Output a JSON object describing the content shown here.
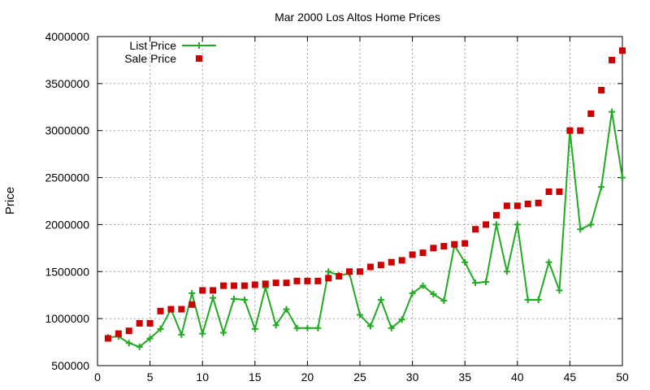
{
  "chart_data": {
    "type": "scatter",
    "title": "Mar 2000 Los Altos Home Prices",
    "xlabel": "",
    "ylabel": "Price",
    "xlim": [
      0,
      50
    ],
    "ylim": [
      500000,
      4000000
    ],
    "x_ticks": [
      "0",
      "5",
      "10",
      "15",
      "20",
      "25",
      "30",
      "35",
      "40",
      "45",
      "50"
    ],
    "y_ticks": [
      "500000",
      "1000000",
      "1500000",
      "2000000",
      "2500000",
      "3000000",
      "3500000",
      "4000000"
    ],
    "grid": true,
    "legend_position": "top-left",
    "x": [
      1,
      2,
      3,
      4,
      5,
      6,
      7,
      8,
      9,
      10,
      11,
      12,
      13,
      14,
      15,
      16,
      17,
      18,
      19,
      20,
      21,
      22,
      23,
      24,
      25,
      26,
      27,
      28,
      29,
      30,
      31,
      32,
      33,
      34,
      35,
      36,
      37,
      38,
      39,
      40,
      41,
      42,
      43,
      44,
      45,
      46,
      47,
      48,
      49,
      50
    ],
    "series": [
      {
        "name": "List Price",
        "style": "linespoints",
        "color": "#22aa22",
        "values": [
          800000,
          810000,
          740000,
          700000,
          790000,
          890000,
          1100000,
          830000,
          1270000,
          840000,
          1220000,
          850000,
          1210000,
          1200000,
          890000,
          1330000,
          930000,
          1100000,
          900000,
          900000,
          900000,
          1500000,
          1460000,
          1480000,
          1040000,
          920000,
          1200000,
          900000,
          990000,
          1270000,
          1350000,
          1260000,
          1190000,
          1780000,
          1600000,
          1380000,
          1390000,
          2000000,
          1500000,
          2000000,
          1200000,
          1200000,
          1600000,
          1300000,
          3000000,
          1950000,
          2000000,
          2400000,
          3200000,
          2500000
        ]
      },
      {
        "name": "Sale Price",
        "style": "points",
        "color": "#cc0000",
        "values": [
          790000,
          840000,
          870000,
          950000,
          950000,
          1080000,
          1100000,
          1100000,
          1150000,
          1300000,
          1300000,
          1350000,
          1350000,
          1350000,
          1360000,
          1370000,
          1380000,
          1380000,
          1400000,
          1400000,
          1400000,
          1430000,
          1450000,
          1500000,
          1500000,
          1550000,
          1570000,
          1600000,
          1620000,
          1680000,
          1700000,
          1750000,
          1770000,
          1790000,
          1800000,
          1950000,
          2000000,
          2100000,
          2200000,
          2200000,
          2220000,
          2230000,
          2350000,
          2350000,
          3000000,
          3000000,
          3180000,
          3430000,
          3750000,
          3850000
        ]
      }
    ]
  }
}
